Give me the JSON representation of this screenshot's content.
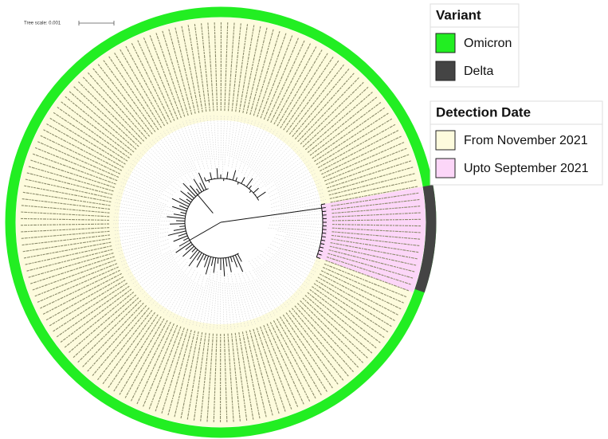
{
  "tree_scale": {
    "label": "Tree scale: 0.001"
  },
  "legends": [
    {
      "title": "Variant",
      "items": [
        {
          "label": "Omicron",
          "color": "#22ee22"
        },
        {
          "label": "Delta",
          "color": "#444444"
        }
      ]
    },
    {
      "title": "Detection Date",
      "items": [
        {
          "label": "From November 2021",
          "color": "#fdfbdd"
        },
        {
          "label": "Upto September 2021",
          "color": "#fcd6f8"
        }
      ]
    }
  ]
}
